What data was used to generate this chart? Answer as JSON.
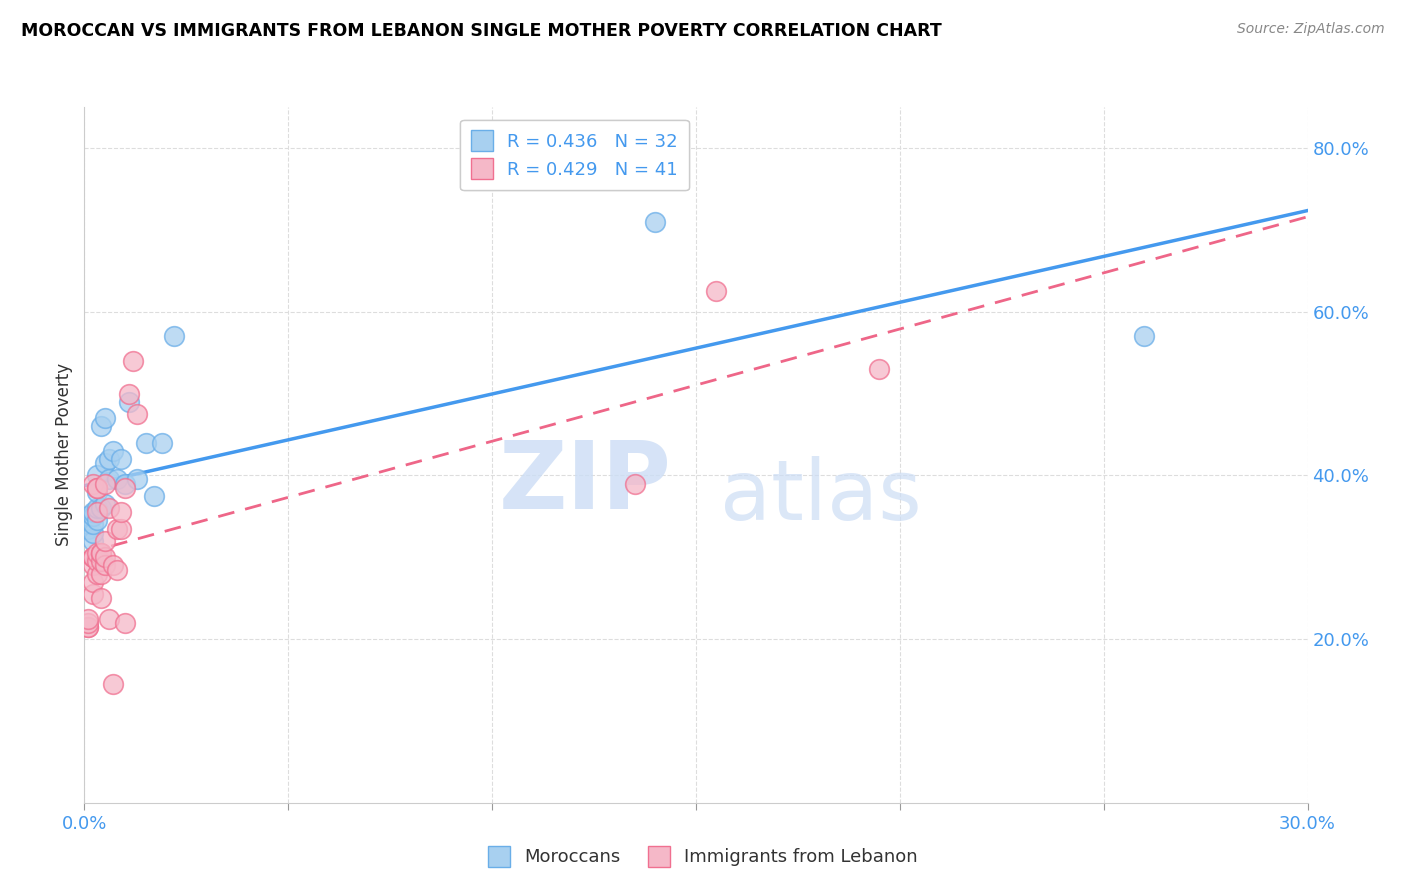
{
  "title": "MOROCCAN VS IMMIGRANTS FROM LEBANON SINGLE MOTHER POVERTY CORRELATION CHART",
  "source": "Source: ZipAtlas.com",
  "ylabel": "Single Mother Poverty",
  "x_min": 0.0,
  "x_max": 0.3,
  "y_min": 0.0,
  "y_max": 0.85,
  "y_ticks": [
    0.2,
    0.4,
    0.6,
    0.8
  ],
  "y_tick_labels": [
    "20.0%",
    "40.0%",
    "60.0%",
    "80.0%"
  ],
  "x_ticks": [
    0.0,
    0.05,
    0.1,
    0.15,
    0.2,
    0.25,
    0.3
  ],
  "x_tick_labels": [
    "0.0%",
    "",
    "",
    "",
    "",
    "",
    "30.0%"
  ],
  "moroccan_color": "#A8D0F0",
  "lebanon_color": "#F5B8C8",
  "moroccan_edge_color": "#6aaee8",
  "lebanon_edge_color": "#f07090",
  "moroccan_line_color": "#4499EE",
  "lebanon_line_color": "#EE6688",
  "R_moroccan": 0.436,
  "N_moroccan": 32,
  "R_lebanon": 0.429,
  "N_lebanon": 41,
  "legend_label_1": "Moroccans",
  "legend_label_2": "Immigrants from Lebanon",
  "moroccan_x": [
    0.001,
    0.001,
    0.001,
    0.001,
    0.002,
    0.002,
    0.002,
    0.002,
    0.002,
    0.003,
    0.003,
    0.003,
    0.003,
    0.004,
    0.004,
    0.005,
    0.005,
    0.005,
    0.006,
    0.006,
    0.007,
    0.008,
    0.009,
    0.01,
    0.011,
    0.013,
    0.015,
    0.017,
    0.019,
    0.022,
    0.14,
    0.26
  ],
  "moroccan_y": [
    0.335,
    0.34,
    0.345,
    0.35,
    0.32,
    0.33,
    0.34,
    0.35,
    0.355,
    0.345,
    0.36,
    0.38,
    0.4,
    0.36,
    0.46,
    0.365,
    0.415,
    0.47,
    0.395,
    0.42,
    0.43,
    0.395,
    0.42,
    0.39,
    0.49,
    0.395,
    0.44,
    0.375,
    0.44,
    0.57,
    0.71,
    0.57
  ],
  "lebanon_x": [
    0.001,
    0.001,
    0.001,
    0.001,
    0.002,
    0.002,
    0.002,
    0.002,
    0.002,
    0.002,
    0.003,
    0.003,
    0.003,
    0.003,
    0.003,
    0.003,
    0.004,
    0.004,
    0.004,
    0.004,
    0.004,
    0.005,
    0.005,
    0.005,
    0.005,
    0.006,
    0.006,
    0.007,
    0.007,
    0.008,
    0.008,
    0.009,
    0.009,
    0.01,
    0.01,
    0.011,
    0.012,
    0.013,
    0.135,
    0.155,
    0.195
  ],
  "lebanon_y": [
    0.215,
    0.215,
    0.22,
    0.225,
    0.255,
    0.27,
    0.29,
    0.3,
    0.3,
    0.39,
    0.28,
    0.295,
    0.305,
    0.355,
    0.385,
    0.385,
    0.25,
    0.28,
    0.295,
    0.305,
    0.305,
    0.29,
    0.3,
    0.32,
    0.39,
    0.225,
    0.36,
    0.145,
    0.29,
    0.285,
    0.335,
    0.335,
    0.355,
    0.22,
    0.385,
    0.5,
    0.54,
    0.475,
    0.39,
    0.625,
    0.53
  ],
  "watermark_1": "ZIP",
  "watermark_2": "atlas",
  "background_color": "#FFFFFF",
  "grid_color": "#DDDDDD",
  "tick_color": "#4499EE",
  "label_color": "#333333"
}
